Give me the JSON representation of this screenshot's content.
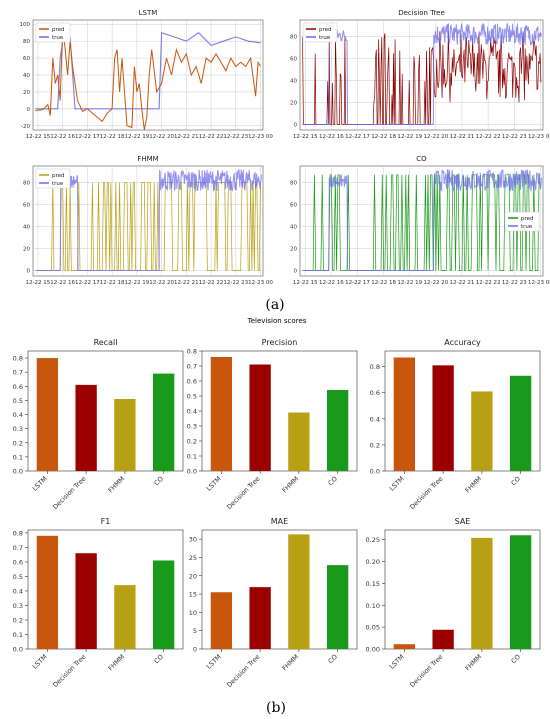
{
  "figure": {
    "label_a": "(a)",
    "label_b": "(b)",
    "scores_title": "Television scores"
  },
  "chart_data": [
    {
      "type": "line",
      "title": "LSTM",
      "x_ticks": [
        "12-22 15",
        "12-22 16",
        "12-22 17",
        "12-22 18",
        "12-22 19",
        "12-22 20",
        "12-22 21",
        "12-22 22",
        "12-22 23",
        "12-23 00"
      ],
      "x_range": [
        14.8,
        24.1
      ],
      "ylim": [
        -25,
        105
      ],
      "y_ticks": [
        -20,
        0,
        20,
        40,
        60,
        80,
        100
      ],
      "grid": true,
      "legend": "upper-left",
      "series": [
        {
          "name": "pred",
          "color": "#c8560c",
          "x": [
            14.9,
            15.2,
            15.4,
            15.5,
            15.6,
            15.7,
            15.8,
            15.9,
            16.0,
            16.1,
            16.2,
            16.3,
            16.4,
            16.6,
            16.8,
            17.0,
            17.2,
            17.4,
            17.6,
            17.8,
            18.0,
            18.1,
            18.2,
            18.3,
            18.4,
            18.6,
            18.8,
            18.9,
            19.0,
            19.1,
            19.2,
            19.3,
            19.4,
            19.5,
            19.6,
            19.8,
            20.0,
            20.2,
            20.4,
            20.6,
            20.8,
            21.0,
            21.2,
            21.4,
            21.6,
            21.8,
            22.0,
            22.2,
            22.4,
            22.6,
            22.8,
            23.0,
            23.2,
            23.4,
            23.6,
            23.8,
            23.9,
            24.0
          ],
          "y": [
            -2,
            -1,
            5,
            -8,
            60,
            30,
            40,
            10,
            98,
            70,
            40,
            80,
            50,
            10,
            -3,
            0,
            -5,
            -10,
            -15,
            -5,
            0,
            60,
            70,
            20,
            60,
            -20,
            -22,
            50,
            20,
            30,
            0,
            -25,
            -10,
            40,
            70,
            20,
            30,
            60,
            40,
            70,
            55,
            65,
            40,
            50,
            30,
            60,
            55,
            65,
            55,
            45,
            60,
            50,
            55,
            50,
            60,
            15,
            55,
            50
          ]
        },
        {
          "name": "true",
          "color": "#6b6bea",
          "x": [
            14.9,
            15.3,
            15.8,
            15.9,
            16.0,
            16.1,
            16.3,
            16.5,
            19.9,
            20.0,
            20.5,
            21.0,
            21.5,
            22.0,
            22.5,
            23.0,
            23.5,
            24.0
          ],
          "y": [
            0,
            0,
            0,
            60,
            80,
            85,
            85,
            0,
            0,
            90,
            85,
            80,
            90,
            75,
            80,
            85,
            80,
            78
          ]
        }
      ]
    },
    {
      "type": "line",
      "title": "Decision Tree",
      "x_ticks": [
        "12-22 15",
        "12-22 16",
        "12-22 17",
        "12-22 18",
        "12-22 19",
        "12-22 20",
        "12-22 21",
        "12-22 22",
        "12-22 23",
        "12-23 00"
      ],
      "x_range": [
        14.8,
        24.1
      ],
      "ylim": [
        -5,
        95
      ],
      "y_ticks": [
        0,
        20,
        40,
        60,
        80
      ],
      "grid": true,
      "legend": "upper-left",
      "series": [
        {
          "name": "pred",
          "color": "#8b0000"
        },
        {
          "name": "true",
          "color": "#6b6bea"
        }
      ]
    },
    {
      "type": "line",
      "title": "FHMM",
      "x_ticks": [
        "12-22 15",
        "12-22 16",
        "12-22 17",
        "12-22 18",
        "12-22 19",
        "12-22 20",
        "12-22 21",
        "12-22 22",
        "12-22 23",
        "12-23 00"
      ],
      "x_range": [
        14.8,
        24.1
      ],
      "ylim": [
        -5,
        95
      ],
      "y_ticks": [
        0,
        20,
        40,
        60,
        80
      ],
      "grid": true,
      "legend": "upper-left",
      "series": [
        {
          "name": "pred",
          "color": "#b8a014"
        },
        {
          "name": "true",
          "color": "#6b6bea"
        }
      ]
    },
    {
      "type": "line",
      "title": "CO",
      "x_ticks": [
        "12-22 15",
        "12-22 16",
        "12-22 17",
        "12-22 18",
        "12-22 19",
        "12-22 20",
        "12-22 21",
        "12-22 22",
        "12-22 23",
        "12-23 00"
      ],
      "x_range": [
        14.8,
        24.1
      ],
      "ylim": [
        -5,
        95
      ],
      "y_ticks": [
        0,
        20,
        40,
        60,
        80
      ],
      "grid": true,
      "legend": "lower-right",
      "series": [
        {
          "name": "pred",
          "color": "#1a9a1a"
        },
        {
          "name": "true",
          "color": "#6b6bea"
        }
      ]
    },
    {
      "type": "bar",
      "title": "Recall",
      "categories": [
        "LSTM",
        "Decision Tree",
        "FHMM",
        "CO"
      ],
      "values": [
        0.8,
        0.61,
        0.51,
        0.69
      ],
      "ylim": [
        0,
        0.85
      ],
      "y_ticks": [
        "0.0",
        "0.1",
        "0.2",
        "0.3",
        "0.4",
        "0.5",
        "0.6",
        "0.7",
        "0.8"
      ],
      "colors": [
        "#c8560c",
        "#9b0000",
        "#b8a014",
        "#1a9a1a"
      ]
    },
    {
      "type": "bar",
      "title": "Precision",
      "categories": [
        "LSTM",
        "Decision Tree",
        "FHMM",
        "CO"
      ],
      "values": [
        0.76,
        0.71,
        0.39,
        0.54
      ],
      "ylim": [
        0,
        0.8
      ],
      "y_ticks": [
        "0.0",
        "0.1",
        "0.2",
        "0.3",
        "0.4",
        "0.5",
        "0.6",
        "0.7",
        "0.8"
      ],
      "colors": [
        "#c8560c",
        "#9b0000",
        "#b8a014",
        "#1a9a1a"
      ]
    },
    {
      "type": "bar",
      "title": "Accuracy",
      "categories": [
        "LSTM",
        "Decision Tree",
        "FHMM",
        "CO"
      ],
      "values": [
        0.87,
        0.81,
        0.61,
        0.73
      ],
      "ylim": [
        0,
        0.92
      ],
      "y_ticks": [
        "0.0",
        "0.2",
        "0.4",
        "0.6",
        "0.8"
      ],
      "colors": [
        "#c8560c",
        "#9b0000",
        "#b8a014",
        "#1a9a1a"
      ]
    },
    {
      "type": "bar",
      "title": "F1",
      "categories": [
        "LSTM",
        "Decision Tree",
        "FHMM",
        "CO"
      ],
      "values": [
        0.78,
        0.66,
        0.44,
        0.61
      ],
      "ylim": [
        0,
        0.82
      ],
      "y_ticks": [
        "0.0",
        "0.1",
        "0.2",
        "0.3",
        "0.4",
        "0.5",
        "0.6",
        "0.7",
        "0.8"
      ],
      "colors": [
        "#c8560c",
        "#9b0000",
        "#b8a014",
        "#1a9a1a"
      ]
    },
    {
      "type": "bar",
      "title": "MAE",
      "categories": [
        "LSTM",
        "Decision Tree",
        "FHMM",
        "CO"
      ],
      "values": [
        15.5,
        16.9,
        31.3,
        22.9
      ],
      "ylim": [
        0,
        32.5
      ],
      "y_ticks": [
        "0",
        "5",
        "10",
        "15",
        "20",
        "25",
        "30"
      ],
      "colors": [
        "#c8560c",
        "#9b0000",
        "#b8a014",
        "#1a9a1a"
      ]
    },
    {
      "type": "bar",
      "title": "SAE",
      "categories": [
        "LSTM",
        "Decision Tree",
        "FHMM",
        "CO"
      ],
      "values": [
        0.011,
        0.044,
        0.254,
        0.26
      ],
      "ylim": [
        0,
        0.272
      ],
      "y_ticks": [
        "0.00",
        "0.05",
        "0.10",
        "0.15",
        "0.20",
        "0.25"
      ],
      "colors": [
        "#c8560c",
        "#9b0000",
        "#b8a014",
        "#1a9a1a"
      ]
    }
  ]
}
